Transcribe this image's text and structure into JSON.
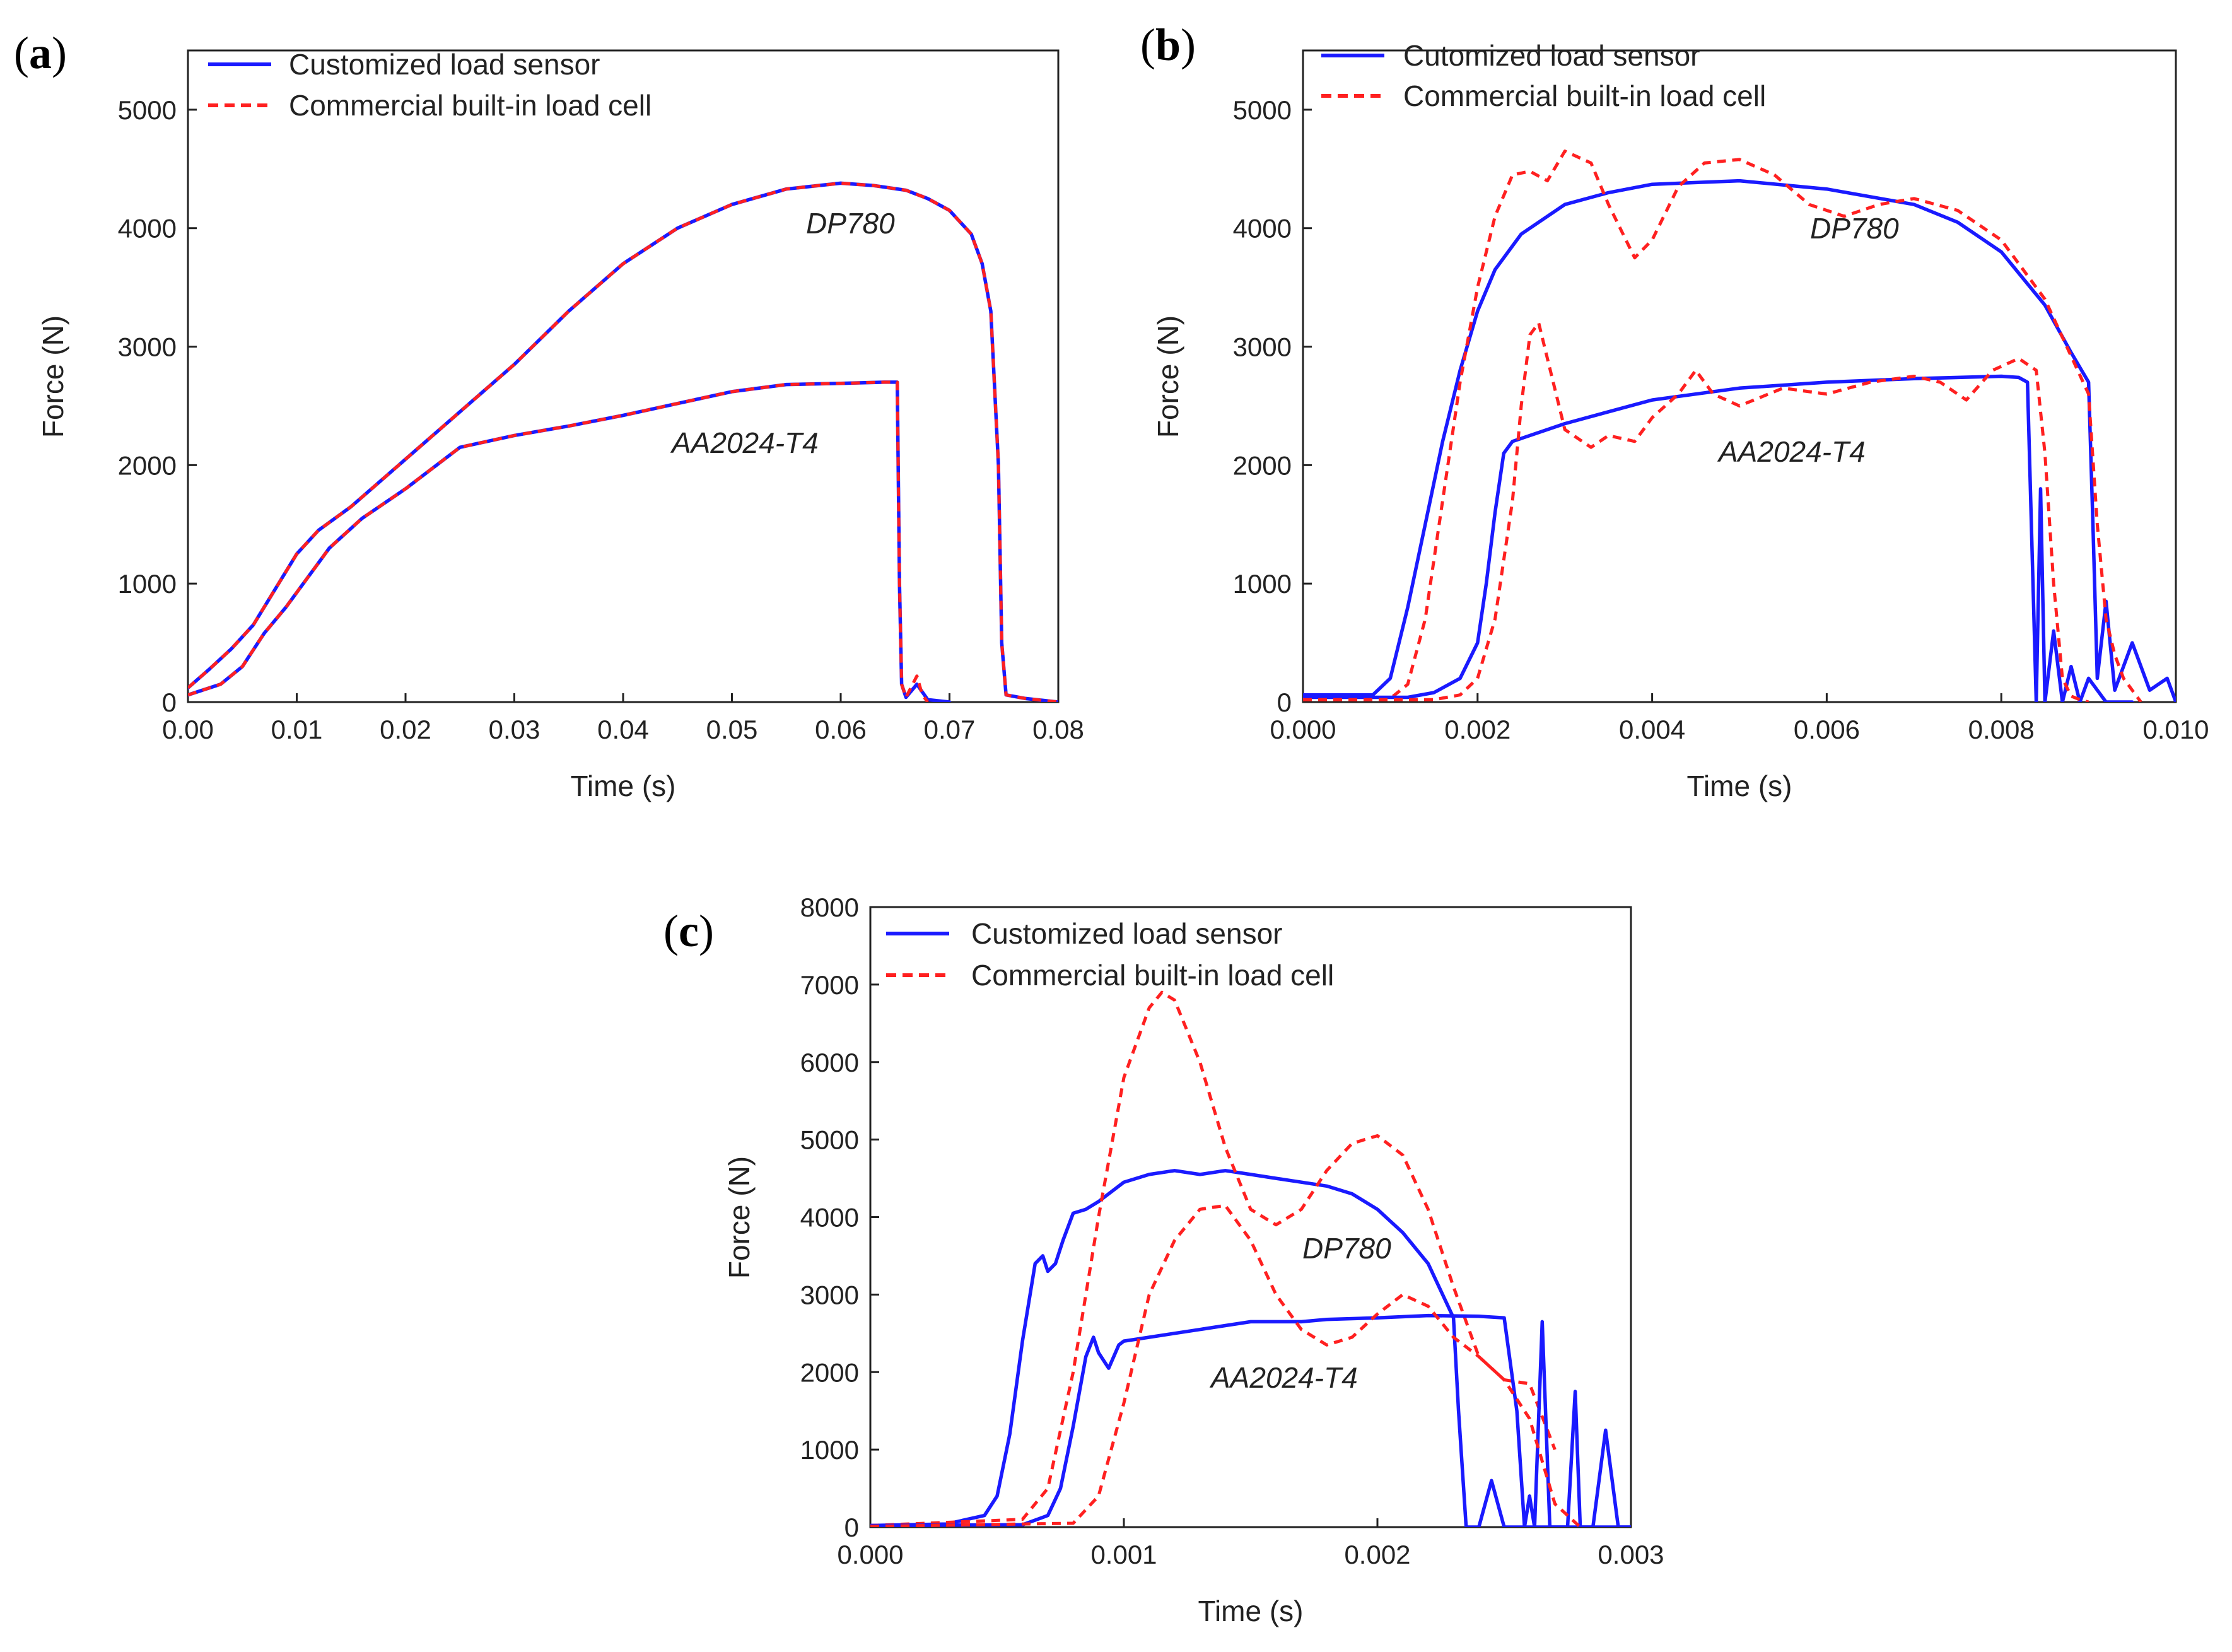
{
  "chart_data": [
    {
      "panel": "a",
      "type": "line",
      "xlabel": "Time (s)",
      "ylabel": "Force (N)",
      "xlim": [
        0,
        0.08
      ],
      "ylim": [
        0,
        5500
      ],
      "xticks": [
        0,
        0.01,
        0.02,
        0.03,
        0.04,
        0.05,
        0.06,
        0.07,
        0.08
      ],
      "xtick_labels": [
        "0.00",
        "0.01",
        "0.02",
        "0.03",
        "0.04",
        "0.05",
        "0.06",
        "0.07",
        "0.08"
      ],
      "yticks": [
        0,
        1000,
        2000,
        3000,
        4000,
        5000
      ],
      "ytick_labels": [
        "0",
        "1000",
        "2000",
        "3000",
        "4000",
        "5000"
      ],
      "legend": [
        {
          "label": "Customized load sensor",
          "color": "#1a1aff",
          "dash": "solid"
        },
        {
          "label": "Commercial built-in load cell",
          "color": "#ff2020",
          "dash": "dashed"
        }
      ],
      "annotations": [
        {
          "text": "DP780",
          "x": 0.0615,
          "y": 3900
        },
        {
          "text": "AA2024-T4",
          "x": 0.051,
          "y": 2080
        }
      ],
      "series": [
        {
          "name": "DP780 - Customized load sensor",
          "color": "#1a1aff",
          "dash": "solid",
          "x": [
            0,
            0.002,
            0.004,
            0.006,
            0.008,
            0.01,
            0.012,
            0.015,
            0.02,
            0.025,
            0.03,
            0.035,
            0.04,
            0.045,
            0.05,
            0.055,
            0.06,
            0.063,
            0.066,
            0.068,
            0.07,
            0.072,
            0.073,
            0.0738,
            0.0745,
            0.0748,
            0.0752,
            0.077,
            0.08
          ],
          "y": [
            120,
            280,
            450,
            650,
            950,
            1250,
            1450,
            1650,
            2050,
            2450,
            2850,
            3300,
            3700,
            4000,
            4200,
            4330,
            4380,
            4360,
            4320,
            4250,
            4150,
            3950,
            3700,
            3300,
            2000,
            500,
            60,
            30,
            0
          ]
        },
        {
          "name": "DP780 - Commercial built-in load cell",
          "color": "#ff2020",
          "dash": "dashed",
          "x": [
            0,
            0.002,
            0.004,
            0.006,
            0.008,
            0.01,
            0.012,
            0.015,
            0.02,
            0.025,
            0.03,
            0.035,
            0.04,
            0.045,
            0.05,
            0.055,
            0.06,
            0.063,
            0.066,
            0.068,
            0.07,
            0.072,
            0.073,
            0.0738,
            0.0745,
            0.0748,
            0.0752,
            0.077,
            0.08
          ],
          "y": [
            120,
            280,
            450,
            650,
            950,
            1250,
            1450,
            1650,
            2050,
            2450,
            2850,
            3300,
            3700,
            4000,
            4200,
            4330,
            4380,
            4360,
            4320,
            4250,
            4150,
            3950,
            3700,
            3300,
            2000,
            500,
            60,
            30,
            0
          ]
        },
        {
          "name": "AA2024-T4 - Customized load sensor",
          "color": "#1a1aff",
          "dash": "solid",
          "x": [
            0,
            0.003,
            0.005,
            0.007,
            0.009,
            0.011,
            0.013,
            0.016,
            0.02,
            0.025,
            0.03,
            0.035,
            0.04,
            0.045,
            0.05,
            0.055,
            0.06,
            0.064,
            0.0652,
            0.0654,
            0.0656,
            0.066,
            0.067,
            0.068,
            0.07
          ],
          "y": [
            60,
            150,
            300,
            580,
            800,
            1050,
            1300,
            1550,
            1800,
            2150,
            2250,
            2330,
            2420,
            2520,
            2620,
            2680,
            2690,
            2700,
            2700,
            1000,
            150,
            40,
            150,
            20,
            0
          ]
        },
        {
          "name": "AA2024-T4 - Commercial built-in load cell",
          "color": "#ff2020",
          "dash": "dashed",
          "x": [
            0,
            0.003,
            0.005,
            0.007,
            0.009,
            0.011,
            0.013,
            0.016,
            0.02,
            0.025,
            0.03,
            0.035,
            0.04,
            0.045,
            0.05,
            0.055,
            0.06,
            0.064,
            0.0652,
            0.0654,
            0.0656,
            0.066,
            0.067,
            0.0675,
            0.068
          ],
          "y": [
            60,
            150,
            300,
            580,
            800,
            1050,
            1300,
            1550,
            1800,
            2150,
            2250,
            2330,
            2420,
            2520,
            2620,
            2680,
            2690,
            2700,
            2700,
            1000,
            150,
            40,
            220,
            60,
            0
          ]
        }
      ]
    },
    {
      "panel": "b",
      "type": "line",
      "xlabel": "Time (s)",
      "ylabel": "Force (N)",
      "xlim": [
        0,
        0.01
      ],
      "ylim": [
        0,
        5500
      ],
      "xticks": [
        0,
        0.002,
        0.004,
        0.006,
        0.008,
        0.01
      ],
      "xtick_labels": [
        "0.000",
        "0.002",
        "0.004",
        "0.006",
        "0.008",
        "0.010"
      ],
      "yticks": [
        0,
        1000,
        2000,
        3000,
        4000,
        5000
      ],
      "ytick_labels": [
        "0",
        "1000",
        "2000",
        "3000",
        "4000",
        "5000"
      ],
      "legend": [
        {
          "label": "Cutomized load sensor",
          "color": "#1a1aff",
          "dash": "solid"
        },
        {
          "label": "Commercial built-in load cell",
          "color": "#ff2020",
          "dash": "dashed"
        }
      ],
      "annotations": [
        {
          "text": "DP780",
          "x": 0.0058,
          "y": 3800
        },
        {
          "text": "AA2024-T4",
          "x": 0.005,
          "y": 1950
        }
      ],
      "series": [
        {
          "name": "DP780 - Cutomized load sensor",
          "color": "#1a1aff",
          "dash": "solid",
          "x": [
            0,
            0.0008,
            0.001,
            0.0012,
            0.0014,
            0.0016,
            0.0018,
            0.002,
            0.0022,
            0.0025,
            0.003,
            0.0035,
            0.004,
            0.005,
            0.006,
            0.007,
            0.0075,
            0.008,
            0.0085,
            0.0088,
            0.009,
            0.00905,
            0.0091,
            0.0092,
            0.0093,
            0.0095,
            0.0097,
            0.0099,
            0.01
          ],
          "y": [
            60,
            60,
            200,
            800,
            1500,
            2200,
            2800,
            3300,
            3650,
            3950,
            4200,
            4300,
            4370,
            4400,
            4330,
            4200,
            4050,
            3800,
            3350,
            2950,
            2700,
            1500,
            200,
            850,
            100,
            500,
            100,
            200,
            0
          ]
        },
        {
          "name": "DP780 - Commercial built-in load cell",
          "color": "#ff2020",
          "dash": "dashed",
          "x": [
            0,
            0.001,
            0.0012,
            0.0014,
            0.0016,
            0.0018,
            0.002,
            0.0022,
            0.0024,
            0.0026,
            0.0028,
            0.003,
            0.0033,
            0.0035,
            0.0038,
            0.004,
            0.0043,
            0.0046,
            0.005,
            0.0054,
            0.0058,
            0.0062,
            0.0066,
            0.007,
            0.0075,
            0.008,
            0.0085,
            0.009,
            0.0091,
            0.0092,
            0.0093,
            0.0094,
            0.0096
          ],
          "y": [
            30,
            30,
            150,
            700,
            1700,
            2700,
            3500,
            4100,
            4450,
            4480,
            4400,
            4650,
            4550,
            4200,
            3750,
            3900,
            4350,
            4550,
            4580,
            4450,
            4200,
            4100,
            4200,
            4250,
            4150,
            3900,
            3400,
            2600,
            1500,
            700,
            400,
            200,
            0
          ]
        },
        {
          "name": "AA2024-T4 - Cutomized load sensor",
          "color": "#1a1aff",
          "dash": "solid",
          "x": [
            0,
            0.0012,
            0.0015,
            0.0018,
            0.002,
            0.0021,
            0.0022,
            0.0023,
            0.0024,
            0.003,
            0.0035,
            0.004,
            0.005,
            0.006,
            0.007,
            0.008,
            0.0082,
            0.0083,
            0.0084,
            0.00845,
            0.0085,
            0.0086,
            0.0087,
            0.0088,
            0.0089,
            0.009,
            0.0092,
            0.0095
          ],
          "y": [
            40,
            40,
            80,
            200,
            500,
            1000,
            1600,
            2100,
            2200,
            2350,
            2450,
            2550,
            2650,
            2700,
            2730,
            2750,
            2740,
            2700,
            0,
            1800,
            0,
            600,
            0,
            300,
            0,
            200,
            0,
            0
          ]
        },
        {
          "name": "AA2024-T4 - Commercial built-in load cell",
          "color": "#ff2020",
          "dash": "dashed",
          "x": [
            0,
            0.0015,
            0.0018,
            0.002,
            0.0022,
            0.0024,
            0.0025,
            0.0026,
            0.0027,
            0.0028,
            0.003,
            0.0033,
            0.0035,
            0.0038,
            0.004,
            0.0043,
            0.0045,
            0.0047,
            0.005,
            0.0055,
            0.006,
            0.0065,
            0.007,
            0.0073,
            0.0076,
            0.0079,
            0.0082,
            0.0084,
            0.0085,
            0.0086,
            0.0087,
            0.0088,
            0.0089,
            0.009
          ],
          "y": [
            20,
            20,
            60,
            200,
            700,
            1700,
            2500,
            3100,
            3200,
            2900,
            2300,
            2150,
            2250,
            2200,
            2400,
            2600,
            2800,
            2600,
            2500,
            2650,
            2600,
            2700,
            2750,
            2700,
            2550,
            2800,
            2900,
            2800,
            2100,
            1000,
            200,
            50,
            20,
            0
          ]
        }
      ]
    },
    {
      "panel": "c",
      "type": "line",
      "xlabel": "Time (s)",
      "ylabel": "Force (N)",
      "xlim": [
        0,
        0.003
      ],
      "ylim": [
        0,
        8000
      ],
      "xticks": [
        0,
        0.001,
        0.002,
        0.003
      ],
      "xtick_labels": [
        "0.000",
        "0.001",
        "0.002",
        "0.003"
      ],
      "yticks": [
        0,
        1000,
        2000,
        3000,
        4000,
        5000,
        6000,
        7000,
        8000
      ],
      "ytick_labels": [
        "0",
        "1000",
        "2000",
        "3000",
        "4000",
        "5000",
        "6000",
        "7000",
        "8000"
      ],
      "legend": [
        {
          "label": "Customized load sensor",
          "color": "#1a1aff",
          "dash": "solid"
        },
        {
          "label": "Commercial built-in load cell",
          "color": "#ff2020",
          "dash": "dashed"
        }
      ],
      "annotations": [
        {
          "text": "DP780",
          "x": 0.00171,
          "y": 3450
        },
        {
          "text": "AA2024-T4",
          "x": 0.00165,
          "y": 1850
        }
      ],
      "series": [
        {
          "name": "DP780 - Customized load sensor",
          "color": "#1a1aff",
          "dash": "solid",
          "x": [
            0,
            0.0003,
            0.00045,
            0.0005,
            0.00055,
            0.0006,
            0.00065,
            0.00068,
            0.0007,
            0.00073,
            0.00076,
            0.0008,
            0.00085,
            0.0009,
            0.001,
            0.0011,
            0.0012,
            0.0013,
            0.0014,
            0.0015,
            0.0016,
            0.0017,
            0.0018,
            0.0019,
            0.002,
            0.0021,
            0.0022,
            0.0023,
            0.00232,
            0.00235,
            0.0024,
            0.00245,
            0.0025,
            0.00255,
            0.0026,
            0.00265,
            0.0027,
            0.0028,
            0.0029,
            0.003
          ],
          "y": [
            20,
            40,
            150,
            400,
            1200,
            2400,
            3400,
            3500,
            3300,
            3400,
            3700,
            4050,
            4100,
            4200,
            4450,
            4550,
            4600,
            4550,
            4600,
            4550,
            4500,
            4450,
            4400,
            4300,
            4100,
            3800,
            3400,
            2700,
            1500,
            0,
            0,
            600,
            0,
            0,
            0,
            0,
            0,
            0,
            0,
            0
          ]
        },
        {
          "name": "DP780 - Commercial built-in load cell",
          "color": "#ff2020",
          "dash": "dashed",
          "x": [
            0,
            0.0006,
            0.0007,
            0.0008,
            0.0009,
            0.001,
            0.0011,
            0.00115,
            0.0012,
            0.0013,
            0.0014,
            0.0015,
            0.0016,
            0.0017,
            0.0018,
            0.0019,
            0.002,
            0.0021,
            0.0022,
            0.0023,
            0.0024,
            0.0025,
            0.0026,
            0.0027
          ],
          "y": [
            20,
            100,
            500,
            2000,
            4000,
            5800,
            6700,
            6900,
            6800,
            6000,
            4900,
            4100,
            3900,
            4100,
            4600,
            4950,
            5050,
            4800,
            4100,
            3100,
            2200,
            1900,
            1850,
            1000
          ]
        },
        {
          "name": "AA2024-T4 - Customized load sensor",
          "color": "#1a1aff",
          "dash": "solid",
          "x": [
            0,
            0.0006,
            0.0007,
            0.00075,
            0.0008,
            0.00085,
            0.00088,
            0.0009,
            0.00094,
            0.00098,
            0.001,
            0.0011,
            0.0012,
            0.0013,
            0.0014,
            0.0015,
            0.0016,
            0.0017,
            0.0018,
            0.002,
            0.0022,
            0.0024,
            0.0025,
            0.00255,
            0.00258,
            0.0026,
            0.00262,
            0.00265,
            0.00268,
            0.0027,
            0.00275,
            0.00278,
            0.0028,
            0.00285,
            0.0029,
            0.00295,
            0.003
          ],
          "y": [
            20,
            30,
            150,
            500,
            1300,
            2200,
            2450,
            2250,
            2050,
            2350,
            2400,
            2450,
            2500,
            2550,
            2600,
            2650,
            2650,
            2650,
            2680,
            2700,
            2730,
            2720,
            2700,
            1500,
            0,
            400,
            0,
            2650,
            0,
            0,
            0,
            1750,
            0,
            0,
            1250,
            0,
            0
          ]
        },
        {
          "name": "AA2024-T4 - Commercial built-in load cell",
          "color": "#ff2020",
          "dash": "dashed",
          "x": [
            0,
            0.0008,
            0.0009,
            0.001,
            0.0011,
            0.0012,
            0.0013,
            0.0014,
            0.0015,
            0.0016,
            0.0017,
            0.0018,
            0.0019,
            0.002,
            0.0021,
            0.0022,
            0.0023,
            0.0024,
            0.0025,
            0.0026,
            0.0027,
            0.0028
          ],
          "y": [
            10,
            50,
            400,
            1600,
            3000,
            3700,
            4100,
            4150,
            3700,
            3000,
            2550,
            2350,
            2450,
            2750,
            3000,
            2850,
            2450,
            2200,
            1900,
            1400,
            300,
            0
          ]
        }
      ]
    }
  ]
}
